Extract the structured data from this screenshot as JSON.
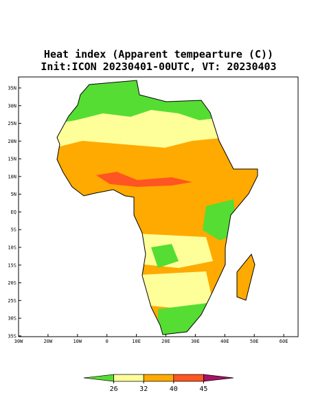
{
  "title": [
    "Heat index (Apparent tempearture (C))",
    "Init:ICON 20230401-00UTC, VT: 20230403"
  ],
  "map": {
    "lat_labels": [
      "35N",
      "30N",
      "25N",
      "20N",
      "15N",
      "10N",
      "5N",
      "EQ",
      "5S",
      "10S",
      "15S",
      "20S",
      "25S",
      "30S",
      "35S"
    ],
    "lon_labels": [
      "30W",
      "20W",
      "10W",
      "0",
      "10E",
      "20E",
      "30E",
      "40E",
      "50E",
      "60E"
    ]
  },
  "colorbar": {
    "levels": [
      26,
      32,
      40,
      45
    ],
    "colors": [
      "#55dd33",
      "#ffff99",
      "#ffaa00",
      "#ff5522",
      "#aa1166"
    ]
  }
}
